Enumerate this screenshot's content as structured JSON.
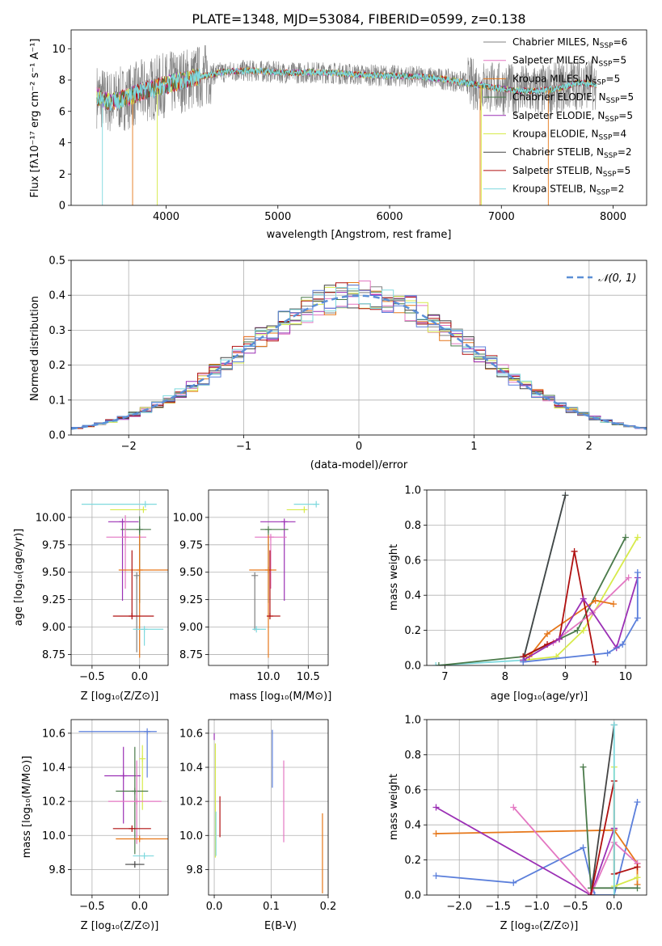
{
  "colors": {
    "chabrier_miles": "#808080",
    "salpeter_miles": "#e377c2",
    "kroupa_miles": "#e6771a",
    "chabrier_elodie": "#4a7a4a",
    "salpeter_elodie": "#9b30b5",
    "kroupa_elodie": "#d7ea4a",
    "chabrier_stelib": "#444444",
    "salpeter_stelib": "#b01010",
    "kroupa_stelib": "#7fd9de",
    "stelib_blue": "#5b7fdb",
    "gauss": "#5b8fd6"
  },
  "chart_data": [
    {
      "id": "spectrum",
      "type": "line",
      "title": "PLATE=1348, MJD=53084, FIBERID=0599, z=0.138",
      "xlabel": "wavelength [Angstrom, rest frame]",
      "ylabel": "Flux [fλ10⁻¹⁷ erg cm⁻² s⁻¹ A⁻¹]",
      "xlim": [
        3150,
        8300
      ],
      "ylim": [
        0,
        11.2
      ],
      "xticks": [
        "4000",
        "5000",
        "6000",
        "7000",
        "8000"
      ],
      "yticks": [
        "0",
        "2",
        "4",
        "6",
        "8",
        "10"
      ],
      "continuum": [
        [
          3380,
          7.0
        ],
        [
          3500,
          6.6
        ],
        [
          3650,
          6.9
        ],
        [
          3800,
          7.3
        ],
        [
          3950,
          7.6
        ],
        [
          4100,
          7.9
        ],
        [
          4300,
          8.2
        ],
        [
          4500,
          8.5
        ],
        [
          4700,
          8.6
        ],
        [
          4900,
          8.55
        ],
        [
          5100,
          8.45
        ],
        [
          5300,
          8.5
        ],
        [
          5500,
          8.45
        ],
        [
          5700,
          8.35
        ],
        [
          5900,
          8.3
        ],
        [
          6100,
          8.25
        ],
        [
          6300,
          8.2
        ],
        [
          6500,
          8.05
        ],
        [
          6700,
          7.8
        ],
        [
          6900,
          7.55
        ],
        [
          7100,
          7.35
        ],
        [
          7300,
          7.3
        ],
        [
          7500,
          7.45
        ],
        [
          7700,
          7.85
        ],
        [
          7850,
          7.7
        ]
      ],
      "legend": [
        {
          "label": "Chabrier MILES, N",
          "sub": "SSP",
          "suffix": "=6"
        },
        {
          "label": "Salpeter MILES, N",
          "sub": "SSP",
          "suffix": "=5"
        },
        {
          "label": "Kroupa MILES, N",
          "sub": "SSP",
          "suffix": "=5"
        },
        {
          "label": "Chabrier ELODIE, N",
          "sub": "SSP",
          "suffix": "=5"
        },
        {
          "label": "Salpeter ELODIE, N",
          "sub": "SSP",
          "suffix": "=5"
        },
        {
          "label": "Kroupa ELODIE, N",
          "sub": "SSP",
          "suffix": "=4"
        },
        {
          "label": "Chabrier STELIB, N",
          "sub": "SSP",
          "suffix": "=2"
        },
        {
          "label": "Salpeter STELIB, N",
          "sub": "SSP",
          "suffix": "=5"
        },
        {
          "label": "Kroupa STELIB, N",
          "sub": "SSP",
          "suffix": "=2"
        }
      ]
    },
    {
      "id": "residuals",
      "type": "line",
      "xlabel": "(data-model)/error",
      "ylabel": "Normed distribution",
      "xlim": [
        -2.5,
        2.5
      ],
      "ylim": [
        0,
        0.5
      ],
      "xticks": [
        "−2",
        "−1",
        "0",
        "1",
        "2"
      ],
      "yticks": [
        "0.0",
        "0.1",
        "0.2",
        "0.3",
        "0.4",
        "0.5"
      ],
      "grid": true,
      "legend_label": "𝒩(0, 1)",
      "gauss_mean": 0,
      "gauss_sigma": 1
    },
    {
      "id": "age_vs_Z",
      "type": "scatter",
      "xlabel": "Z [log₁₀(Z/Z⊙)]",
      "ylabel": "age  [log₁₀(age/yr)]",
      "xlim": [
        -0.72,
        0.3
      ],
      "ylim": [
        8.65,
        10.25
      ],
      "xticks": [
        "−0.5",
        "0.0"
      ],
      "yticks": [
        "8.75",
        "9.00",
        "9.25",
        "9.50",
        "9.75",
        "10.00"
      ],
      "grid": true,
      "points": [
        {
          "series": "kroupa_stelib",
          "x": 0.06,
          "y": 10.12,
          "xerr": [
            0.67,
            0.12
          ],
          "yerr": [
            0,
            0
          ]
        },
        {
          "series": "kroupa_elodie",
          "x": 0.04,
          "y": 10.07,
          "xerr": [
            0.35,
            0.0
          ],
          "yerr": [
            0,
            0
          ]
        },
        {
          "series": "salpeter_elodie",
          "x": -0.18,
          "y": 9.96,
          "xerr": [
            0.15,
            0.17
          ],
          "yerr": [
            0.72,
            0.0
          ]
        },
        {
          "series": "chabrier_elodie",
          "x": 0.0,
          "y": 9.89,
          "xerr": [
            0.2,
            0.12
          ],
          "yerr": [
            0.67,
            0.12
          ]
        },
        {
          "series": "salpeter_miles",
          "x": -0.15,
          "y": 9.82,
          "xerr": [
            0.2,
            0.22
          ],
          "yerr": [
            0.47,
            0.2
          ]
        },
        {
          "series": "kroupa_miles",
          "x": 0.0,
          "y": 9.52,
          "xerr": [
            0.22,
            0.3
          ],
          "yerr": [
            0.8,
            0.32
          ]
        },
        {
          "series": "chabrier_miles",
          "x": -0.03,
          "y": 9.47,
          "xerr": [
            0,
            0
          ],
          "yerr": [
            0.7,
            0.0
          ]
        },
        {
          "series": "salpeter_stelib",
          "x": -0.08,
          "y": 9.1,
          "xerr": [
            0.2,
            0.23
          ],
          "yerr": [
            0,
            0.6
          ]
        },
        {
          "series": "kroupa_stelib",
          "x": 0.05,
          "y": 8.98,
          "xerr": [
            0.12,
            0.2
          ],
          "yerr": [
            0.15,
            0.0
          ]
        }
      ]
    },
    {
      "id": "age_vs_mass",
      "type": "scatter",
      "xlabel": "mass [log₁₀(M/M⊙)]",
      "xlim": [
        9.25,
        10.75
      ],
      "ylim": [
        8.65,
        10.25
      ],
      "xticks": [
        "10.0",
        "10.5"
      ],
      "yticks": [
        "8.75",
        "9.00",
        "9.25",
        "9.50",
        "9.75",
        "10.00"
      ],
      "grid": true,
      "points": [
        {
          "series": "kroupa_stelib",
          "x": 10.6,
          "y": 10.12,
          "xerr": [
            0.28,
            0.0
          ],
          "yerr": [
            0,
            0
          ]
        },
        {
          "series": "kroupa_elodie",
          "x": 10.45,
          "y": 10.07,
          "xerr": [
            0.22,
            0.04
          ],
          "yerr": [
            0,
            0
          ]
        },
        {
          "series": "salpeter_elodie",
          "x": 10.2,
          "y": 9.96,
          "xerr": [
            0.3,
            0.14
          ],
          "yerr": [
            0.72,
            0.0
          ]
        },
        {
          "series": "chabrier_elodie",
          "x": 10.0,
          "y": 9.89,
          "xerr": [
            0.1,
            0.25
          ],
          "yerr": [
            0.67,
            0.0
          ]
        },
        {
          "series": "salpeter_miles",
          "x": 10.03,
          "y": 9.82,
          "xerr": [
            0.2,
            0.2
          ],
          "yerr": [
            0.47,
            0.0
          ]
        },
        {
          "series": "kroupa_miles",
          "x": 10.0,
          "y": 9.52,
          "xerr": [
            0.24,
            0.1
          ],
          "yerr": [
            0.8,
            0.32
          ]
        },
        {
          "series": "chabrier_miles",
          "x": 9.83,
          "y": 9.47,
          "xerr": [
            0,
            0
          ],
          "yerr": [
            0.5,
            0.0
          ]
        },
        {
          "series": "salpeter_stelib",
          "x": 10.02,
          "y": 9.1,
          "xerr": [
            0.0,
            0.13
          ],
          "yerr": [
            0,
            0.6
          ]
        },
        {
          "series": "kroupa_stelib",
          "x": 9.85,
          "y": 8.98,
          "xerr": [
            0.05,
            0.12
          ],
          "yerr": [
            0.0,
            0.0
          ]
        }
      ]
    },
    {
      "id": "weight_vs_age",
      "type": "line",
      "xlabel": "age  [log₁₀(age/yr)]",
      "ylabel": "mass weight",
      "xlim": [
        6.7,
        10.35
      ],
      "ylim": [
        0,
        1.0
      ],
      "xticks": [
        "7",
        "8",
        "9",
        "10"
      ],
      "yticks": [
        "0.0",
        "0.2",
        "0.4",
        "0.6",
        "0.8",
        "1.0"
      ],
      "grid": true,
      "series": [
        {
          "color": "kroupa_stelib",
          "x": [
            6.85,
            8.3,
            9.0
          ],
          "y": [
            0.0,
            0.03,
            0.97
          ]
        },
        {
          "color": "chabrier_stelib",
          "x": [
            8.3,
            9.0
          ],
          "y": [
            0.03,
            0.97
          ]
        },
        {
          "color": "chabrier_elodie",
          "x": [
            6.9,
            8.3,
            9.2,
            10.0
          ],
          "y": [
            0.0,
            0.05,
            0.2,
            0.73
          ]
        },
        {
          "color": "kroupa_elodie",
          "x": [
            8.3,
            8.85,
            9.3,
            10.2
          ],
          "y": [
            0.03,
            0.05,
            0.2,
            0.73
          ]
        },
        {
          "color": "salpeter_miles",
          "x": [
            8.3,
            8.8,
            9.45,
            10.05
          ],
          "y": [
            0.03,
            0.13,
            0.3,
            0.5
          ]
        },
        {
          "color": "kroupa_miles",
          "x": [
            8.4,
            8.7,
            9.5,
            9.8
          ],
          "y": [
            0.05,
            0.18,
            0.37,
            0.35
          ]
        },
        {
          "color": "salpeter_stelib",
          "x": [
            8.3,
            8.7,
            8.9,
            9.15,
            9.5
          ],
          "y": [
            0.05,
            0.12,
            0.15,
            0.65,
            0.02
          ]
        },
        {
          "color": "salpeter_elodie",
          "x": [
            8.3,
            8.9,
            9.3,
            9.85,
            10.2
          ],
          "y": [
            0.03,
            0.15,
            0.38,
            0.1,
            0.5
          ]
        },
        {
          "color": "stelib_blue",
          "x": [
            8.3,
            9.7,
            9.95,
            10.2,
            10.2
          ],
          "y": [
            0.02,
            0.07,
            0.12,
            0.27,
            0.53
          ]
        }
      ]
    },
    {
      "id": "mass_vs_Z",
      "type": "scatter",
      "xlabel": "Z [log₁₀(Z/Z⊙)]",
      "ylabel": "mass [log₁₀(M/M⊙)]",
      "xlim": [
        -0.72,
        0.3
      ],
      "ylim": [
        9.65,
        10.68
      ],
      "xticks": [
        "−0.5",
        "0.0"
      ],
      "yticks": [
        "9.8",
        "10.0",
        "10.2",
        "10.4",
        "10.6"
      ],
      "grid": true,
      "points": [
        {
          "series": "stelib_blue",
          "x": 0.08,
          "y": 10.61,
          "xerr": [
            0.72,
            0.1
          ],
          "yerr": [
            0.27,
            0.0
          ]
        },
        {
          "series": "kroupa_elodie",
          "x": 0.03,
          "y": 10.45,
          "xerr": [
            0,
            0
          ],
          "yerr": [
            0.3,
            0.08
          ]
        },
        {
          "series": "salpeter_elodie",
          "x": -0.17,
          "y": 10.35,
          "xerr": [
            0.2,
            0.18
          ],
          "yerr": [
            0.28,
            0.17
          ]
        },
        {
          "series": "chabrier_elodie",
          "x": -0.05,
          "y": 10.26,
          "xerr": [
            0.2,
            0.14
          ],
          "yerr": [
            0.37,
            0.26
          ]
        },
        {
          "series": "salpeter_miles",
          "x": -0.03,
          "y": 10.2,
          "xerr": [
            0.3,
            0.26
          ],
          "yerr": [
            0.25,
            0.24
          ]
        },
        {
          "series": "salpeter_stelib",
          "x": -0.08,
          "y": 10.04,
          "xerr": [
            0.2,
            0.2
          ],
          "yerr": [
            0.0,
            0.0
          ]
        },
        {
          "series": "kroupa_miles",
          "x": 0.0,
          "y": 9.98,
          "xerr": [
            0.25,
            0.3
          ],
          "yerr": [
            0,
            0
          ]
        },
        {
          "series": "kroupa_stelib",
          "x": 0.05,
          "y": 9.88,
          "xerr": [
            0.12,
            0.1
          ],
          "yerr": [
            0.0,
            0.0
          ]
        },
        {
          "series": "chabrier_stelib",
          "x": -0.05,
          "y": 9.83,
          "xerr": [
            0.1,
            0.1
          ],
          "yerr": [
            0,
            0
          ]
        }
      ]
    },
    {
      "id": "mass_vs_ebv",
      "type": "scatter",
      "xlabel": "E(B-V)",
      "xlim": [
        -0.01,
        0.2
      ],
      "ylim": [
        9.65,
        10.68
      ],
      "xticks": [
        "0.0",
        "0.1",
        "0.2"
      ],
      "yticks": [
        "9.8",
        "10.0",
        "10.2",
        "10.4",
        "10.6"
      ],
      "grid": true,
      "vlines": [
        {
          "color": "salpeter_elodie",
          "x": 0.0,
          "y0": 10.56,
          "y1": 10.6
        },
        {
          "color": "kroupa_elodie",
          "x": 0.002,
          "y0": 9.87,
          "y1": 10.54
        },
        {
          "color": "kroupa_stelib",
          "x": 0.003,
          "y0": 9.88,
          "y1": 10.14
        },
        {
          "color": "salpeter_stelib",
          "x": 0.01,
          "y0": 9.99,
          "y1": 10.23
        },
        {
          "color": "stelib_blue",
          "x": 0.102,
          "y0": 10.28,
          "y1": 10.62
        },
        {
          "color": "salpeter_miles",
          "x": 0.122,
          "y0": 9.96,
          "y1": 10.44
        },
        {
          "color": "kroupa_miles",
          "x": 0.19,
          "y0": 9.66,
          "y1": 10.13
        }
      ]
    },
    {
      "id": "weight_vs_Z",
      "type": "line",
      "xlabel": "Z [log₁₀(Z/Z⊙)]",
      "ylabel": "mass weight",
      "xlim": [
        -2.42,
        0.42
      ],
      "ylim": [
        0,
        1.0
      ],
      "xticks": [
        "−2.0",
        "−1.5",
        "−1.0",
        "−0.5",
        "0.0"
      ],
      "yticks": [
        "0.0",
        "0.2",
        "0.4",
        "0.6",
        "0.8",
        "1.0"
      ],
      "grid": true,
      "series": [
        {
          "color": "stelib_blue",
          "x": [
            -2.3,
            -1.3,
            -0.4,
            -0.25,
            0.0,
            0.3
          ],
          "y": [
            0.11,
            0.07,
            0.27,
            0.0,
            0.0,
            0.53
          ]
        },
        {
          "color": "kroupa_miles",
          "x": [
            -2.3,
            0.0,
            0.3,
            0.3
          ],
          "y": [
            0.35,
            0.37,
            0.18,
            0.06
          ]
        },
        {
          "color": "salpeter_elodie",
          "x": [
            -2.3,
            -0.3,
            0.0,
            0.0
          ],
          "y": [
            0.5,
            0.0,
            0.38,
            0.38
          ]
        },
        {
          "color": "salpeter_miles",
          "x": [
            -1.3,
            -0.3,
            0.0,
            0.3
          ],
          "y": [
            0.5,
            0.0,
            0.3,
            0.18
          ]
        },
        {
          "color": "chabrier_elodie",
          "x": [
            -0.4,
            -0.3,
            0.0,
            0.3
          ],
          "y": [
            0.73,
            0.04,
            0.04,
            0.04
          ]
        },
        {
          "color": "chabrier_stelib",
          "x": [
            -0.3,
            0.0
          ],
          "y": [
            0.0,
            0.97
          ]
        },
        {
          "color": "kroupa_elodie",
          "x": [
            0.0,
            0.0,
            0.3
          ],
          "y": [
            0.73,
            0.05,
            0.1
          ]
        },
        {
          "color": "salpeter_stelib",
          "x": [
            -0.3,
            0.0,
            0.0,
            0.3
          ],
          "y": [
            0.0,
            0.65,
            0.12,
            0.16
          ]
        },
        {
          "color": "kroupa_stelib",
          "x": [
            0.0,
            0.0
          ],
          "y": [
            0.97,
            0.0
          ]
        }
      ]
    }
  ]
}
